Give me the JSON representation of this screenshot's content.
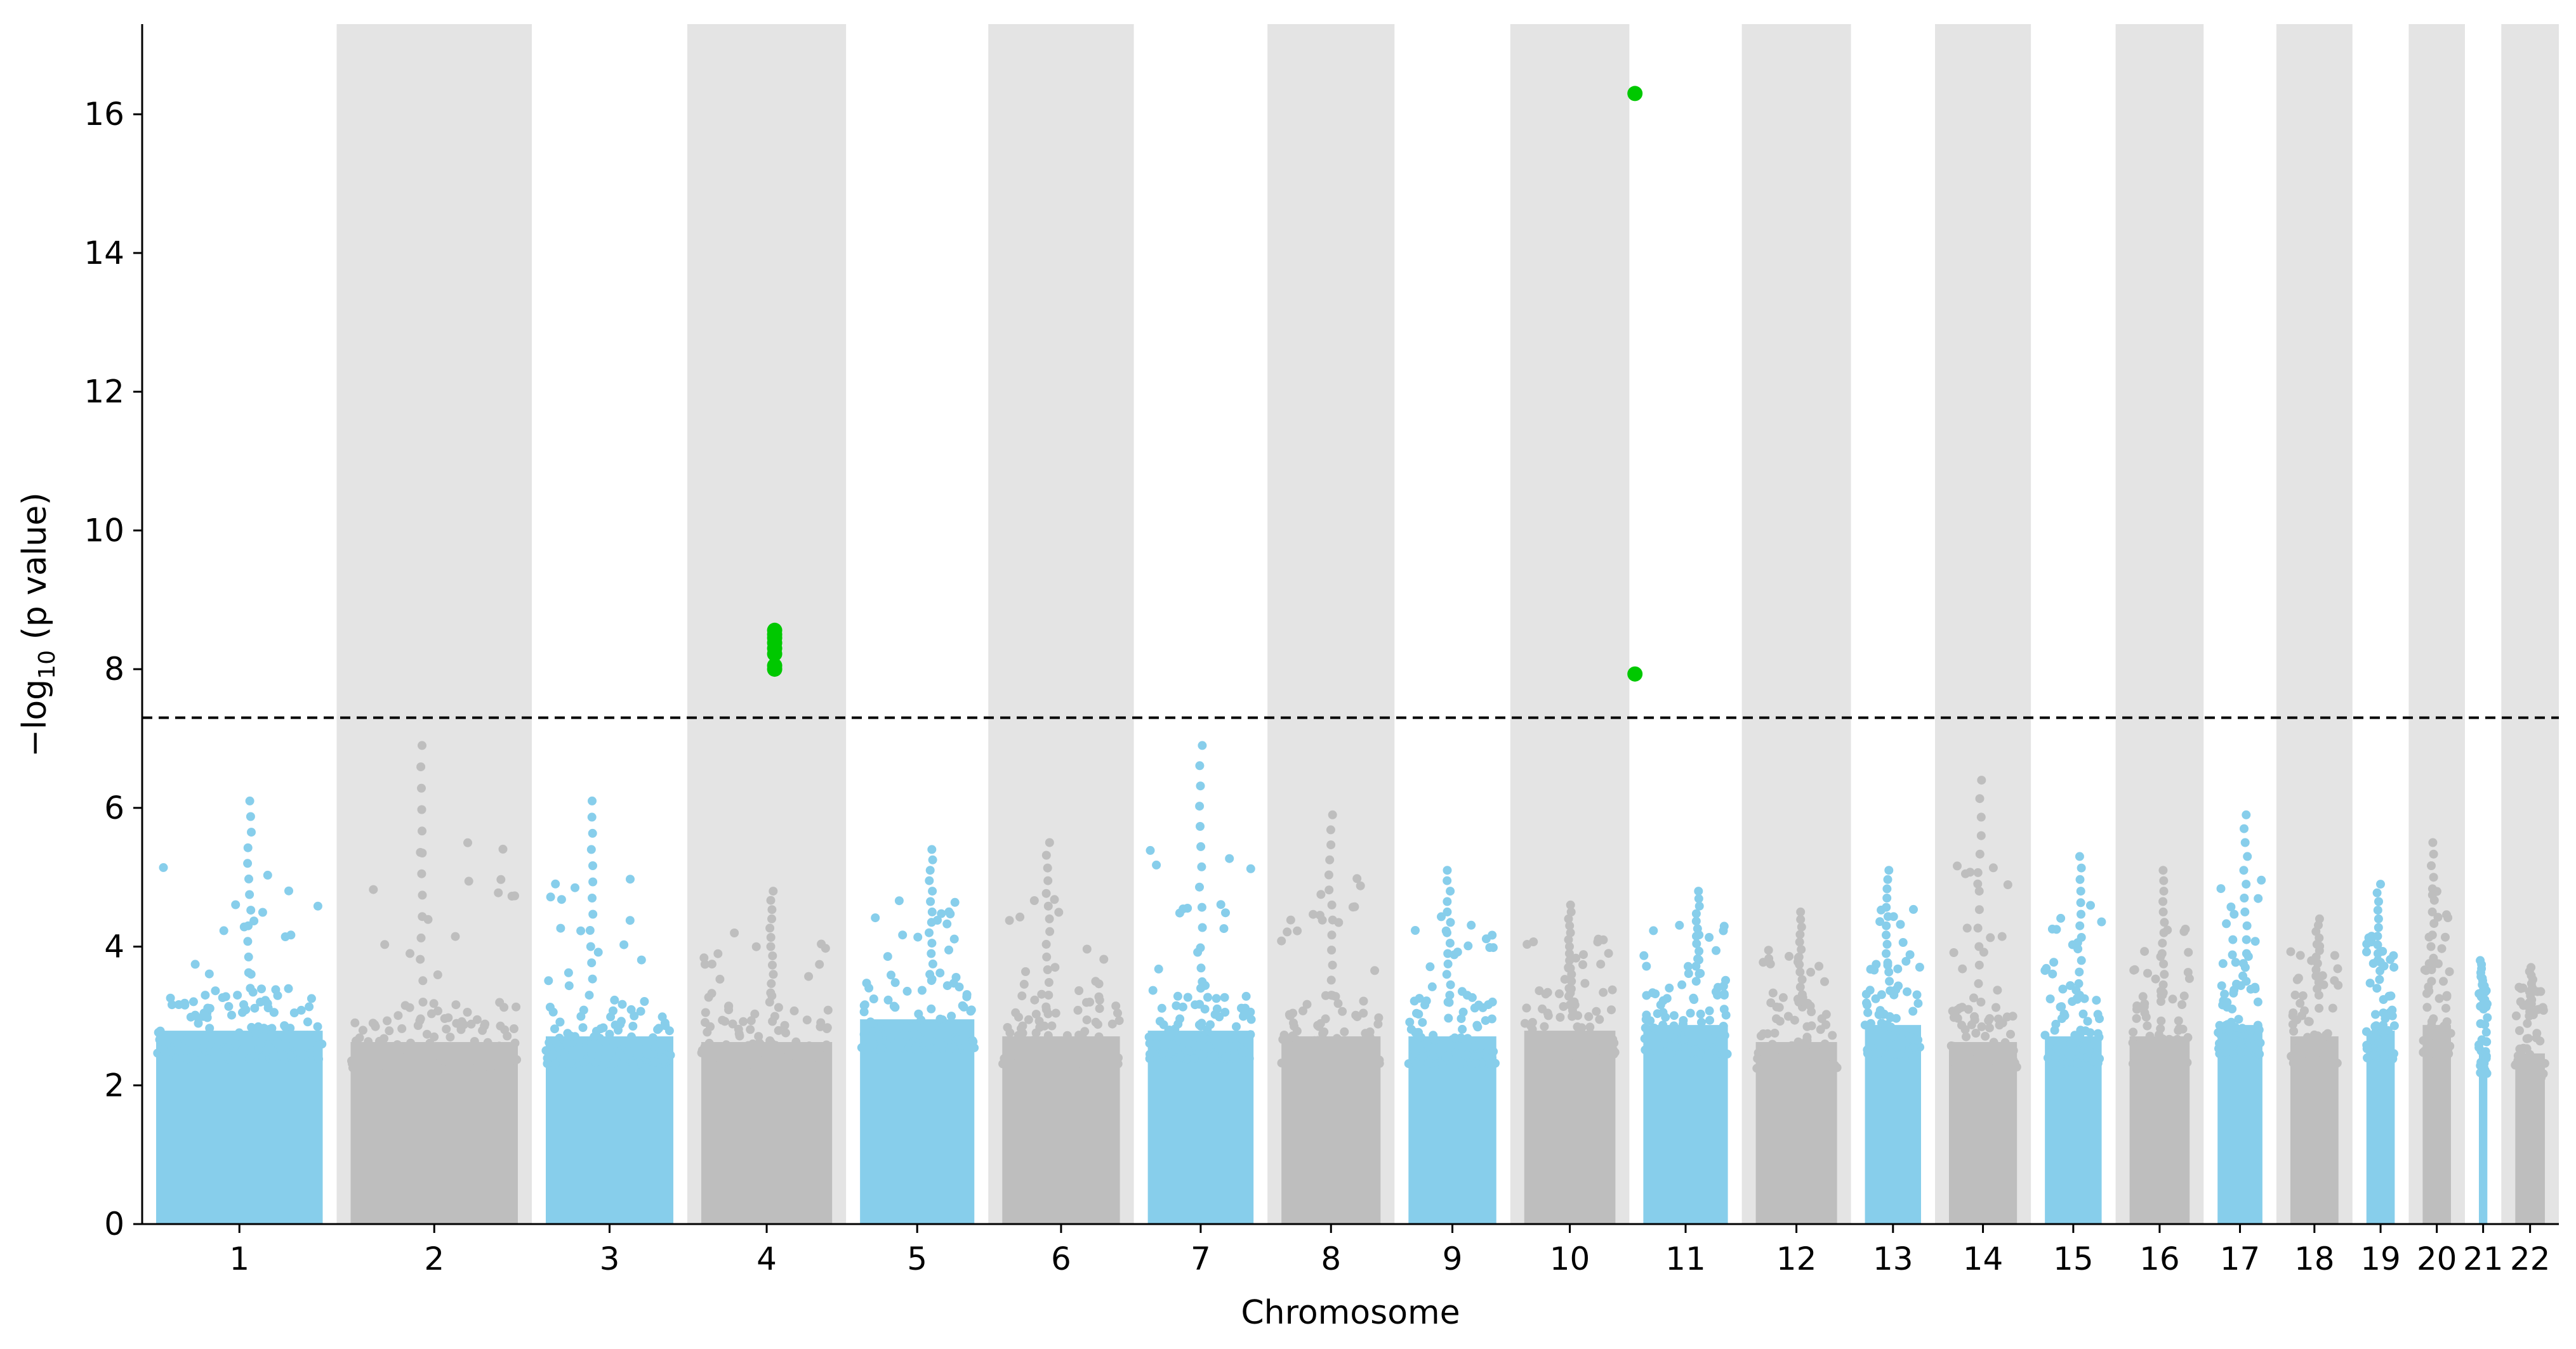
{
  "chart_data": {
    "type": "scatter",
    "subtype": "manhattan",
    "title": "",
    "xlabel": "Chromosome",
    "ylabel_prefix": "−log",
    "ylabel_sub": "10",
    "ylabel_suffix": " (p value)",
    "ylim": [
      0,
      17.3
    ],
    "yticks": [
      0,
      2,
      4,
      6,
      8,
      10,
      12,
      14,
      16
    ],
    "significance_threshold": 7.3,
    "colors": {
      "odd_chromosome": "#87ceeb",
      "even_chromosome": "#bebebe",
      "even_band": "#e4e4e4",
      "significant": "#00c800",
      "threshold_line": "#000000"
    },
    "chromosomes": [
      {
        "label": "1",
        "peak": 6.1,
        "base_max": 3.4
      },
      {
        "label": "2",
        "peak": 6.9,
        "base_max": 3.2
      },
      {
        "label": "3",
        "peak": 6.1,
        "base_max": 3.3
      },
      {
        "label": "4",
        "peak": 4.8,
        "base_max": 3.2
      },
      {
        "label": "5",
        "peak": 5.4,
        "base_max": 3.6
      },
      {
        "label": "6",
        "peak": 5.5,
        "base_max": 3.3
      },
      {
        "label": "7",
        "peak": 6.9,
        "base_max": 3.4
      },
      {
        "label": "8",
        "peak": 5.9,
        "base_max": 3.3
      },
      {
        "label": "9",
        "peak": 5.1,
        "base_max": 3.3
      },
      {
        "label": "10",
        "peak": 4.6,
        "base_max": 3.4
      },
      {
        "label": "11",
        "peak": 4.8,
        "base_max": 3.5
      },
      {
        "label": "12",
        "peak": 4.5,
        "base_max": 3.2
      },
      {
        "label": "13",
        "peak": 5.1,
        "base_max": 3.5
      },
      {
        "label": "14",
        "peak": 6.4,
        "base_max": 3.2
      },
      {
        "label": "15",
        "peak": 5.3,
        "base_max": 3.3
      },
      {
        "label": "16",
        "peak": 5.1,
        "base_max": 3.3
      },
      {
        "label": "17",
        "peak": 5.9,
        "base_max": 3.5
      },
      {
        "label": "18",
        "peak": 4.4,
        "base_max": 3.3
      },
      {
        "label": "19",
        "peak": 4.9,
        "base_max": 3.4
      },
      {
        "label": "20",
        "peak": 5.5,
        "base_max": 3.5
      },
      {
        "label": "21",
        "peak": 3.8,
        "base_max": 3.1
      },
      {
        "label": "22",
        "peak": 3.7,
        "base_max": 3.0
      }
    ],
    "significant_points": [
      {
        "chromosome": "4",
        "p": 8.56
      },
      {
        "chromosome": "4",
        "p": 8.5
      },
      {
        "chromosome": "4",
        "p": 8.45
      },
      {
        "chromosome": "4",
        "p": 8.38
      },
      {
        "chromosome": "4",
        "p": 8.3
      },
      {
        "chromosome": "4",
        "p": 8.22
      },
      {
        "chromosome": "4",
        "p": 8.05
      },
      {
        "chromosome": "4",
        "p": 8.0
      },
      {
        "chromosome": "11",
        "p": 16.3
      },
      {
        "chromosome": "11",
        "p": 7.93
      }
    ]
  }
}
